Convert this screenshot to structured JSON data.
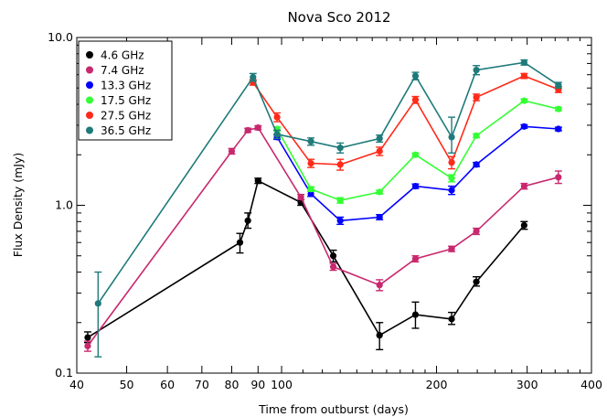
{
  "chart_data": {
    "type": "line",
    "title": "Nova Sco 2012",
    "xlabel": "Time from outburst (days)",
    "ylabel": "Flux Density (mJy)",
    "x_scale": "log",
    "y_scale": "log",
    "xlim": [
      40,
      400
    ],
    "ylim": [
      0.1,
      10.0
    ],
    "x_ticks": [
      {
        "value": 40,
        "label": "40"
      },
      {
        "value": 50,
        "label": "50"
      },
      {
        "value": 60,
        "label": "60"
      },
      {
        "value": 70,
        "label": "70"
      },
      {
        "value": 80,
        "label": "80"
      },
      {
        "value": 90,
        "label": "90"
      },
      {
        "value": 100,
        "label": "100"
      },
      {
        "value": 200,
        "label": "200"
      },
      {
        "value": 300,
        "label": "300"
      },
      {
        "value": 400,
        "label": "400"
      }
    ],
    "y_ticks": [
      {
        "value": 0.1,
        "label": "0.1"
      },
      {
        "value": 1.0,
        "label": "1.0"
      },
      {
        "value": 10.0,
        "label": "10.0"
      }
    ],
    "legend_position": "top-left",
    "series": [
      {
        "name": "4.6 GHz",
        "color": "#000000",
        "points": [
          {
            "x": 42,
            "y": 0.163,
            "lo": 0.152,
            "hi": 0.176
          },
          {
            "x": 83,
            "y": 0.6,
            "lo": 0.52,
            "hi": 0.68
          },
          {
            "x": 86,
            "y": 0.81,
            "lo": 0.73,
            "hi": 0.9
          },
          {
            "x": 90,
            "y": 1.4,
            "lo": 1.35,
            "hi": 1.45
          },
          {
            "x": 109,
            "y": 1.04,
            "lo": 1.0,
            "hi": 1.08
          },
          {
            "x": 126,
            "y": 0.5,
            "lo": 0.46,
            "hi": 0.54
          },
          {
            "x": 155,
            "y": 0.168,
            "lo": 0.138,
            "hi": 0.2
          },
          {
            "x": 182,
            "y": 0.223,
            "lo": 0.185,
            "hi": 0.265
          },
          {
            "x": 214,
            "y": 0.21,
            "lo": 0.195,
            "hi": 0.23
          },
          {
            "x": 239,
            "y": 0.35,
            "lo": 0.33,
            "hi": 0.375
          },
          {
            "x": 296,
            "y": 0.76,
            "lo": 0.72,
            "hi": 0.8
          }
        ]
      },
      {
        "name": "7.4 GHz",
        "color": "#c8286e",
        "points": [
          {
            "x": 42,
            "y": 0.145,
            "lo": 0.135,
            "hi": 0.155
          },
          {
            "x": 80,
            "y": 2.1,
            "lo": 2.02,
            "hi": 2.18
          },
          {
            "x": 86,
            "y": 2.8,
            "lo": 2.72,
            "hi": 2.88
          },
          {
            "x": 90,
            "y": 2.9,
            "lo": 2.82,
            "hi": 2.98
          },
          {
            "x": 109,
            "y": 1.12,
            "lo": 1.08,
            "hi": 1.16
          },
          {
            "x": 126,
            "y": 0.43,
            "lo": 0.41,
            "hi": 0.45
          },
          {
            "x": 155,
            "y": 0.335,
            "lo": 0.31,
            "hi": 0.36
          },
          {
            "x": 182,
            "y": 0.48,
            "lo": 0.46,
            "hi": 0.5
          },
          {
            "x": 214,
            "y": 0.55,
            "lo": 0.53,
            "hi": 0.57
          },
          {
            "x": 239,
            "y": 0.7,
            "lo": 0.67,
            "hi": 0.73
          },
          {
            "x": 296,
            "y": 1.3,
            "lo": 1.25,
            "hi": 1.35
          },
          {
            "x": 345,
            "y": 1.47,
            "lo": 1.35,
            "hi": 1.6
          }
        ]
      },
      {
        "name": "13.3 GHz",
        "color": "#0000ff",
        "points": [
          {
            "x": 98,
            "y": 2.55,
            "lo": 2.47,
            "hi": 2.63
          },
          {
            "x": 114,
            "y": 1.17,
            "lo": 1.13,
            "hi": 1.21
          },
          {
            "x": 130,
            "y": 0.81,
            "lo": 0.77,
            "hi": 0.85
          },
          {
            "x": 155,
            "y": 0.85,
            "lo": 0.82,
            "hi": 0.88
          },
          {
            "x": 182,
            "y": 1.3,
            "lo": 1.26,
            "hi": 1.34
          },
          {
            "x": 214,
            "y": 1.23,
            "lo": 1.16,
            "hi": 1.3
          },
          {
            "x": 239,
            "y": 1.75,
            "lo": 1.7,
            "hi": 1.8
          },
          {
            "x": 296,
            "y": 2.95,
            "lo": 2.88,
            "hi": 3.02
          },
          {
            "x": 345,
            "y": 2.85,
            "lo": 2.78,
            "hi": 2.92
          }
        ]
      },
      {
        "name": "17.5 GHz",
        "color": "#33ff33",
        "points": [
          {
            "x": 98,
            "y": 2.85,
            "lo": 2.77,
            "hi": 2.93
          },
          {
            "x": 114,
            "y": 1.25,
            "lo": 1.21,
            "hi": 1.29
          },
          {
            "x": 130,
            "y": 1.07,
            "lo": 1.03,
            "hi": 1.11
          },
          {
            "x": 155,
            "y": 1.2,
            "lo": 1.17,
            "hi": 1.23
          },
          {
            "x": 182,
            "y": 2.0,
            "lo": 1.95,
            "hi": 2.05
          },
          {
            "x": 214,
            "y": 1.45,
            "lo": 1.38,
            "hi": 1.52
          },
          {
            "x": 239,
            "y": 2.6,
            "lo": 2.53,
            "hi": 2.67
          },
          {
            "x": 296,
            "y": 4.2,
            "lo": 4.1,
            "hi": 4.3
          },
          {
            "x": 345,
            "y": 3.75,
            "lo": 3.66,
            "hi": 3.84
          }
        ]
      },
      {
        "name": "27.5 GHz",
        "color": "#ff2a1a",
        "points": [
          {
            "x": 88,
            "y": 5.4,
            "lo": 5.2,
            "hi": 5.6
          },
          {
            "x": 98,
            "y": 3.35,
            "lo": 3.15,
            "hi": 3.55
          },
          {
            "x": 114,
            "y": 1.78,
            "lo": 1.68,
            "hi": 1.88
          },
          {
            "x": 130,
            "y": 1.75,
            "lo": 1.62,
            "hi": 1.88
          },
          {
            "x": 155,
            "y": 2.1,
            "lo": 1.98,
            "hi": 2.22
          },
          {
            "x": 182,
            "y": 4.25,
            "lo": 4.05,
            "hi": 4.45
          },
          {
            "x": 214,
            "y": 1.8,
            "lo": 1.65,
            "hi": 1.95
          },
          {
            "x": 239,
            "y": 4.4,
            "lo": 4.2,
            "hi": 4.6
          },
          {
            "x": 296,
            "y": 5.9,
            "lo": 5.7,
            "hi": 6.1
          },
          {
            "x": 345,
            "y": 4.9,
            "lo": 4.7,
            "hi": 5.1
          }
        ]
      },
      {
        "name": "36.5 GHz",
        "color": "#1f7a7a",
        "points": [
          {
            "x": 44,
            "y": 0.26,
            "lo": 0.125,
            "hi": 0.4
          },
          {
            "x": 88,
            "y": 5.8,
            "lo": 5.5,
            "hi": 6.1
          },
          {
            "x": 98,
            "y": 2.65,
            "lo": 2.5,
            "hi": 2.8
          },
          {
            "x": 114,
            "y": 2.4,
            "lo": 2.28,
            "hi": 2.52
          },
          {
            "x": 130,
            "y": 2.2,
            "lo": 2.05,
            "hi": 2.35
          },
          {
            "x": 155,
            "y": 2.5,
            "lo": 2.38,
            "hi": 2.62
          },
          {
            "x": 182,
            "y": 5.9,
            "lo": 5.6,
            "hi": 6.2
          },
          {
            "x": 214,
            "y": 2.55,
            "lo": 2.05,
            "hi": 3.35
          },
          {
            "x": 239,
            "y": 6.4,
            "lo": 6.0,
            "hi": 6.8
          },
          {
            "x": 296,
            "y": 7.1,
            "lo": 6.85,
            "hi": 7.35
          },
          {
            "x": 345,
            "y": 5.2,
            "lo": 5.0,
            "hi": 5.4
          }
        ]
      }
    ]
  }
}
